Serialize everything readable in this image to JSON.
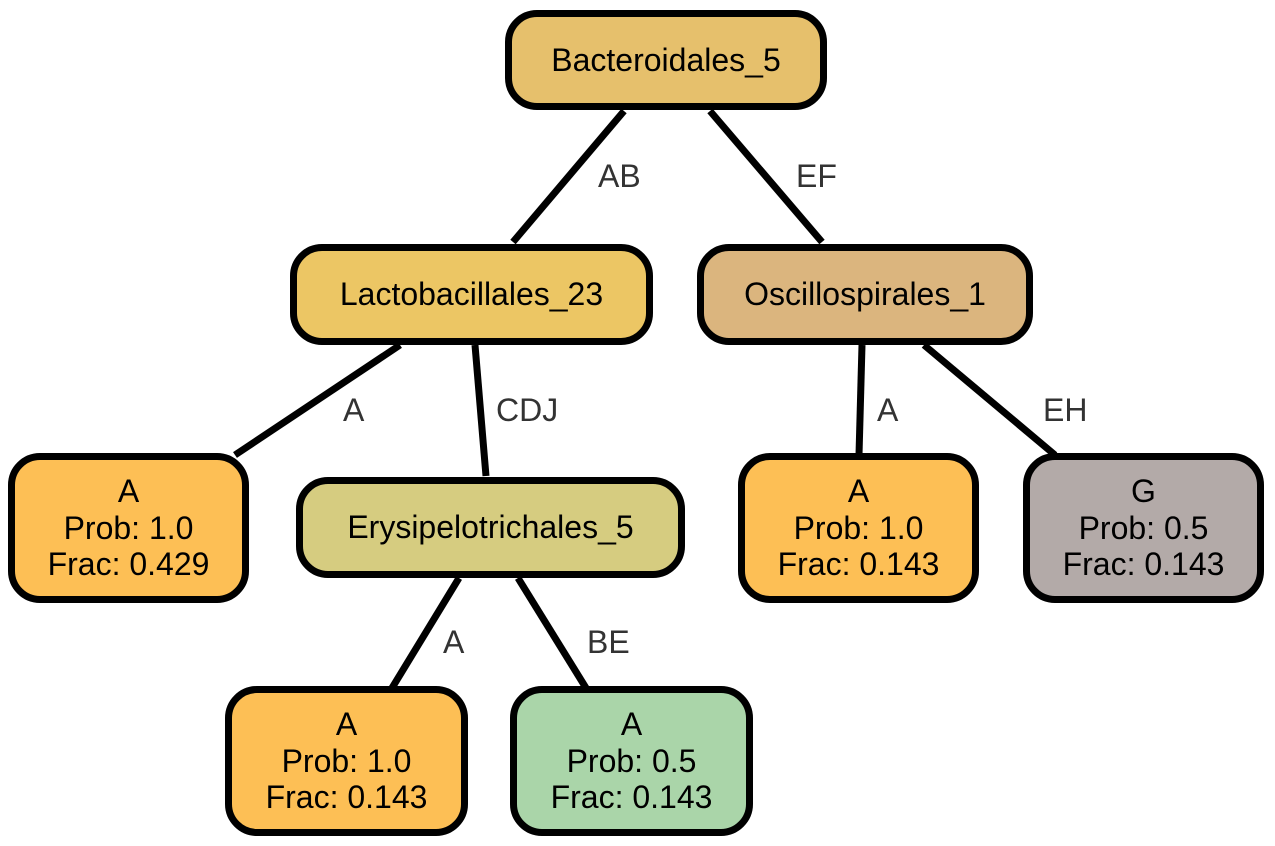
{
  "colors": {
    "bacteroidales": "#e6c06c",
    "lactobacillales": "#ecc664",
    "erysipelotrichales": "#d6cc80",
    "oscillospirales": "#dbb57e",
    "leaf_orange": "#fdbf55",
    "leaf_green": "#aad5a9",
    "leaf_gray": "#b3aaa8"
  },
  "nodes": {
    "root": {
      "label": "Bacteroidales_5"
    },
    "lactobacillales": {
      "label": "Lactobacillales_23"
    },
    "oscillospirales": {
      "label": "Oscillospirales_1"
    },
    "erysipelotrichales": {
      "label": "Erysipelotrichales_5"
    },
    "leaf1": {
      "label": "A",
      "prob": "Prob: 1.0",
      "frac": "Frac: 0.429"
    },
    "leaf2": {
      "label": "A",
      "prob": "Prob: 1.0",
      "frac": "Frac: 0.143"
    },
    "leaf3": {
      "label": "A",
      "prob": "Prob: 0.5",
      "frac": "Frac: 0.143"
    },
    "leaf4": {
      "label": "A",
      "prob": "Prob: 1.0",
      "frac": "Frac: 0.143"
    },
    "leaf5": {
      "label": "G",
      "prob": "Prob: 0.5",
      "frac": "Frac: 0.143"
    }
  },
  "edges": {
    "root_lacto": "AB",
    "root_oscillo": "EF",
    "lacto_leaf1": "A",
    "lacto_erysi": "CDJ",
    "erysi_leaf2": "A",
    "erysi_leaf3": "BE",
    "oscillo_leaf4": "A",
    "oscillo_leaf5": "EH"
  }
}
